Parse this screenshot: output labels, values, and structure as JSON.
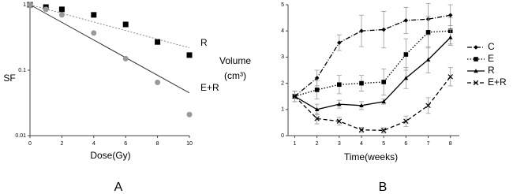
{
  "chart_data": [
    {
      "type": "scatter",
      "panel": "A",
      "xlabel": "Dose(Gy)",
      "ylabel": "SF",
      "log_y": true,
      "x": [
        0,
        1,
        2,
        4,
        6,
        8,
        10
      ],
      "xlim": [
        0,
        10
      ],
      "xticks": [
        0,
        2,
        4,
        6,
        8,
        10
      ],
      "ylim": [
        0.01,
        1
      ],
      "yticks": [
        0.01,
        0.1,
        1
      ],
      "fit_x": [
        0,
        10
      ],
      "series": [
        {
          "name": "R",
          "color": "#000000",
          "marker": "square",
          "fit_dash": "2,2",
          "fit_color": "#888888",
          "values": [
            1.0,
            0.92,
            0.85,
            0.7,
            0.5,
            0.27,
            0.17
          ],
          "fit": [
            1.0,
            0.22
          ]
        },
        {
          "name": "E+R",
          "color": "#999999",
          "marker": "circle",
          "fit_dash": "",
          "fit_color": "#333333",
          "values": [
            1.0,
            0.85,
            0.7,
            0.37,
            0.15,
            0.065,
            0.021
          ],
          "fit": [
            1.0,
            0.045
          ]
        }
      ]
    },
    {
      "type": "line",
      "panel": "B",
      "xlabel": "Time(weeks)",
      "ylabel": "Volume",
      "ylabel_unit": "(cm³)",
      "x": [
        1,
        2,
        3,
        4,
        5,
        6,
        7,
        8
      ],
      "xlim": [
        0.7,
        8.4
      ],
      "xticks": [
        1,
        2,
        3,
        4,
        5,
        6,
        7,
        8
      ],
      "ylim": [
        0,
        5
      ],
      "yticks": [
        0,
        1,
        2,
        3,
        4,
        5
      ],
      "series": [
        {
          "name": "C",
          "color": "#000000",
          "marker": "diamond",
          "dash": "6,2,1,2",
          "values": [
            1.5,
            2.2,
            3.55,
            4.0,
            4.05,
            4.4,
            4.45,
            4.6
          ],
          "errors": [
            0.2,
            0.3,
            0.3,
            0.6,
            0.7,
            0.5,
            0.6,
            0.4
          ]
        },
        {
          "name": "E",
          "color": "#000000",
          "marker": "square",
          "dash": "1.5,2",
          "values": [
            1.5,
            1.75,
            1.95,
            2.0,
            2.05,
            3.1,
            3.95,
            4.0
          ],
          "errors": [
            0.2,
            0.35,
            0.35,
            0.3,
            0.5,
            0.6,
            0.6,
            0.5
          ]
        },
        {
          "name": "R",
          "color": "#000000",
          "marker": "triangle",
          "dash": "",
          "values": [
            1.5,
            1.0,
            1.2,
            1.15,
            1.3,
            2.2,
            2.9,
            3.75
          ],
          "errors": [
            0.2,
            0.2,
            0.15,
            0.15,
            0.1,
            0.4,
            0.5,
            0.3
          ]
        },
        {
          "name": "E+R",
          "color": "#000000",
          "marker": "x",
          "dash": "5,3",
          "values": [
            1.5,
            0.65,
            0.55,
            0.22,
            0.2,
            0.55,
            1.15,
            2.25
          ],
          "errors": [
            0.2,
            0.2,
            0.15,
            0.1,
            0.1,
            0.2,
            0.3,
            0.35
          ]
        }
      ]
    }
  ]
}
